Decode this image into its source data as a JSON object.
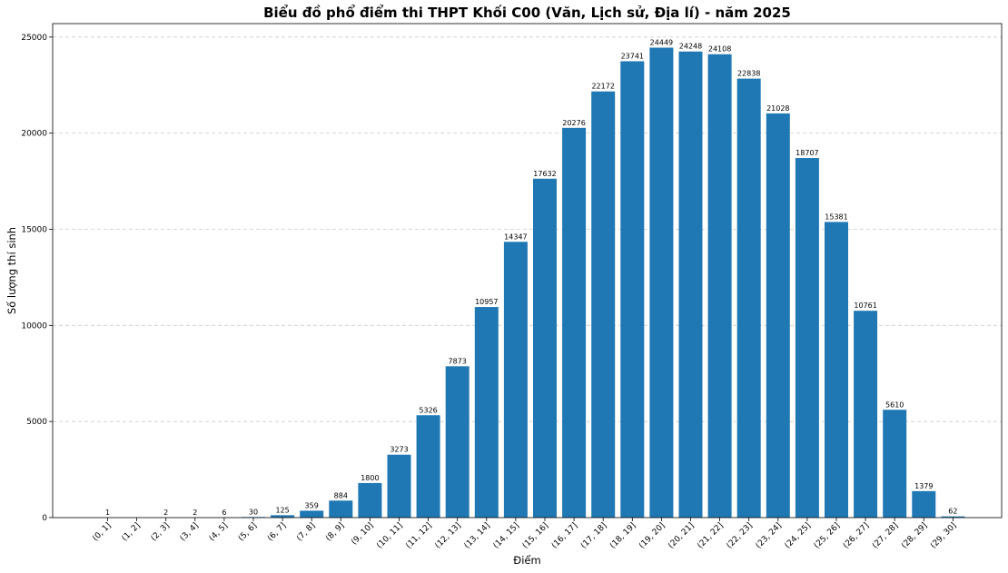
{
  "chart_data": {
    "type": "bar",
    "title": "Biểu đồ phổ điểm thi THPT Khối C00 (Văn, Lịch sử, Địa lí) - năm 2025",
    "xlabel": "Điểm",
    "ylabel": "Số lượng thí sinh",
    "categories": [
      "(0, 1]",
      "(1, 2]",
      "(2, 3]",
      "(3, 4]",
      "(4, 5]",
      "(5, 6]",
      "(6, 7]",
      "(7, 8]",
      "(8, 9]",
      "(9, 10]",
      "(10, 11]",
      "(11, 12]",
      "(12, 13]",
      "(13, 14]",
      "(14, 15]",
      "(15, 16]",
      "(16, 17]",
      "(17, 18]",
      "(18, 19]",
      "(19, 20]",
      "(20, 21]",
      "(21, 22]",
      "(22, 23]",
      "(23, 24]",
      "(24, 25]",
      "(25, 26]",
      "(26, 27]",
      "(27, 28]",
      "(28, 29]",
      "(29, 30]"
    ],
    "values": [
      1,
      null,
      2,
      2,
      6,
      30,
      125,
      359,
      884,
      1800,
      3273,
      5326,
      7873,
      10957,
      14347,
      17632,
      20276,
      22172,
      23741,
      24449,
      24248,
      24108,
      22838,
      21028,
      18707,
      15381,
      10761,
      5610,
      1379,
      62
    ],
    "ylim": [
      0,
      25700
    ],
    "yticks": [
      0,
      5000,
      10000,
      15000,
      20000,
      25000
    ],
    "grid": "y-dashed",
    "legend": "none",
    "bar_color": "#1f77b4"
  }
}
